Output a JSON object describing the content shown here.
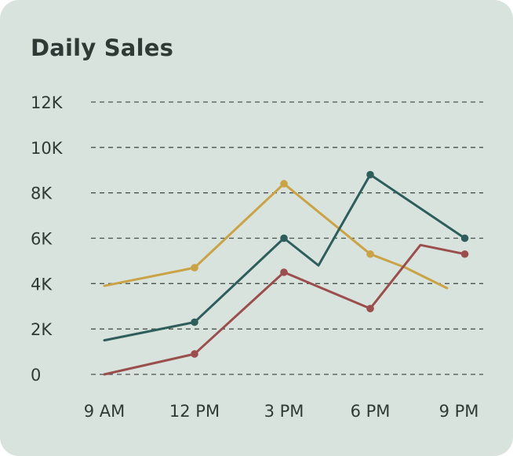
{
  "title": "Daily Sales",
  "chart_data": {
    "type": "line",
    "title": "Daily Sales",
    "xlabel": "",
    "ylabel": "",
    "x_ticks": [
      "9 AM",
      "12 PM",
      "3 PM",
      "6 PM",
      "9 PM"
    ],
    "y_ticks": [
      "0",
      "2K",
      "4K",
      "6K",
      "8K",
      "10K",
      "12K"
    ],
    "ylim": [
      0,
      12000
    ],
    "grid": true,
    "series": [
      {
        "color": "#c9a346",
        "points": [
          [
            9,
            3900
          ],
          [
            12,
            4700
          ],
          [
            15,
            8400
          ],
          [
            18,
            5300
          ],
          [
            19.2,
            4700
          ],
          [
            20.6,
            3800
          ]
        ],
        "markers": [
          1,
          2,
          3
        ]
      },
      {
        "color": "#2e5e5c",
        "points": [
          [
            9,
            1500
          ],
          [
            12,
            2300
          ],
          [
            15,
            6000
          ],
          [
            16.2,
            4800
          ],
          [
            18,
            8800
          ],
          [
            21.2,
            6000
          ]
        ],
        "markers": [
          1,
          2,
          4,
          5
        ]
      },
      {
        "color": "#9b4f4d",
        "points": [
          [
            9,
            0
          ],
          [
            12,
            900
          ],
          [
            15,
            4500
          ],
          [
            18,
            2900
          ],
          [
            19.7,
            5700
          ],
          [
            21.2,
            5300
          ]
        ],
        "markers": [
          1,
          2,
          3,
          5
        ]
      }
    ]
  }
}
